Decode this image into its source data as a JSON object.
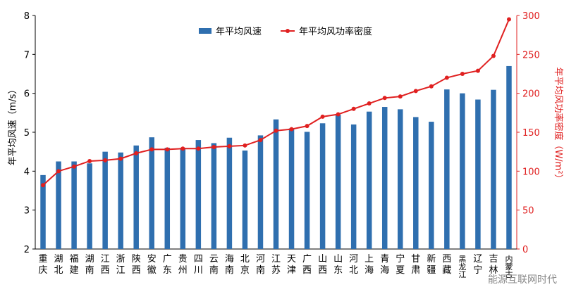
{
  "chart_data": {
    "type": "bar+line",
    "categories": [
      "重庆",
      "湖北",
      "福建",
      "湖南",
      "江西",
      "浙江",
      "陕西",
      "安徽",
      "广东",
      "贵州",
      "四川",
      "云南",
      "海南",
      "北京",
      "河南",
      "江苏",
      "天津",
      "广西",
      "山西",
      "山东",
      "河北",
      "上海",
      "青海",
      "宁夏",
      "甘肃",
      "新疆",
      "西藏",
      "黑龙江",
      "辽宁",
      "吉林",
      "内蒙古"
    ],
    "series": [
      {
        "name": "年平均风速",
        "type": "bar",
        "axis": "left",
        "color": "#2f6faf",
        "values": [
          3.9,
          4.25,
          4.25,
          4.2,
          4.5,
          4.48,
          4.66,
          4.87,
          4.6,
          4.6,
          4.8,
          4.72,
          4.86,
          4.53,
          4.92,
          5.33,
          5.1,
          5.01,
          5.23,
          5.45,
          5.2,
          5.53,
          5.65,
          5.59,
          5.39,
          5.27,
          6.1,
          6.0,
          5.84,
          6.09,
          6.7
        ]
      },
      {
        "name": "年平均风功率密度",
        "type": "line",
        "axis": "right",
        "color": "#e02020",
        "values": [
          82,
          100,
          106,
          113,
          114,
          116,
          123,
          128,
          128,
          129,
          129,
          131,
          132,
          133,
          140,
          152,
          154,
          158,
          170,
          173,
          180,
          187,
          194,
          196,
          203,
          209,
          220,
          225,
          229,
          248,
          295
        ]
      }
    ],
    "ylabel_left": "年平均风速（m/s）",
    "ylabel_right": "年平均风功率密度（W/m²）",
    "ylim_left": [
      2,
      8
    ],
    "yticks_left": [
      2,
      3,
      4,
      5,
      6,
      7,
      8
    ],
    "ylim_right": [
      0,
      300
    ],
    "yticks_right": [
      0,
      50,
      100,
      150,
      200,
      250,
      300
    ],
    "legend_position": "top-center",
    "grid": false
  },
  "watermark": "能源互联网时代"
}
